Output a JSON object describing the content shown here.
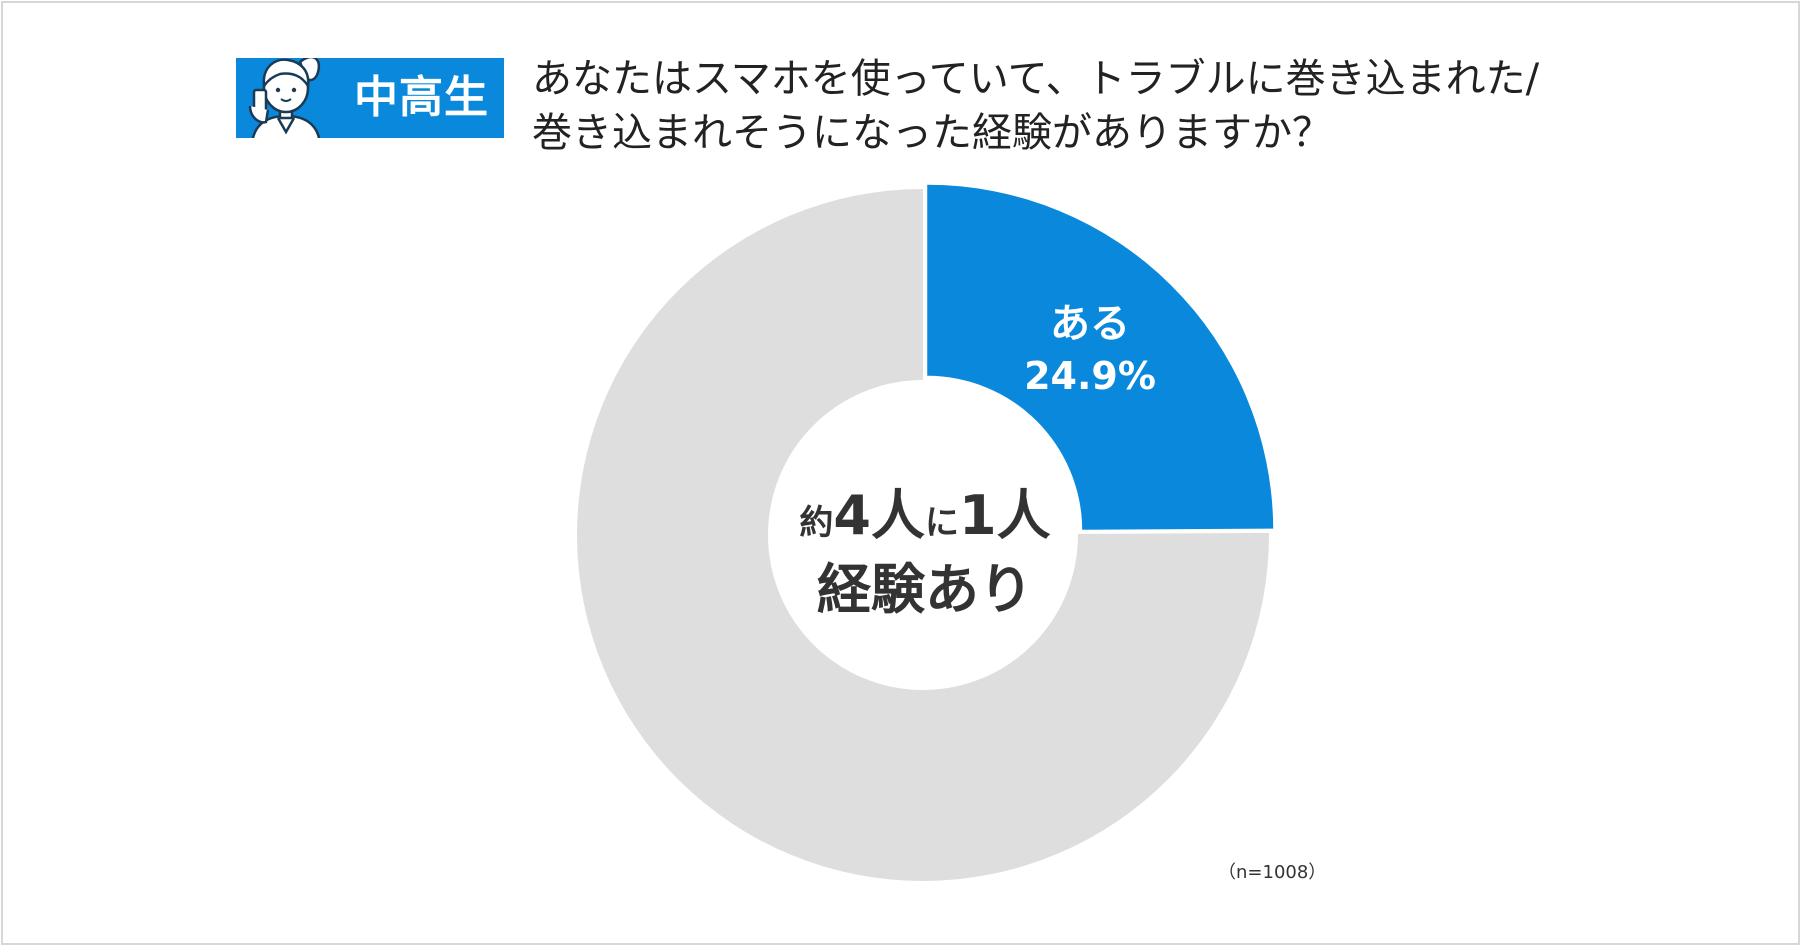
{
  "badge": {
    "label": "中高生",
    "icon": "student-with-phone-icon"
  },
  "question": {
    "line1": "あなたはスマホを使っていて、トラブルに巻き込まれた/",
    "line2": "巻き込まれそうになった経験がありますか？"
  },
  "chart_data": {
    "type": "pie",
    "style": "donut",
    "slices": [
      {
        "label": "ある",
        "value": 24.9,
        "value_label": "24.9%",
        "color": "#0a89dc"
      },
      {
        "value": 75.1,
        "color": "#dedede"
      }
    ],
    "center_text": {
      "prefix": "約",
      "num1": "4",
      "unit1": "人",
      "mid": "に",
      "num2": "1",
      "unit2": "人",
      "line2": "経験あり"
    },
    "sample_note": "（n=1008）"
  }
}
